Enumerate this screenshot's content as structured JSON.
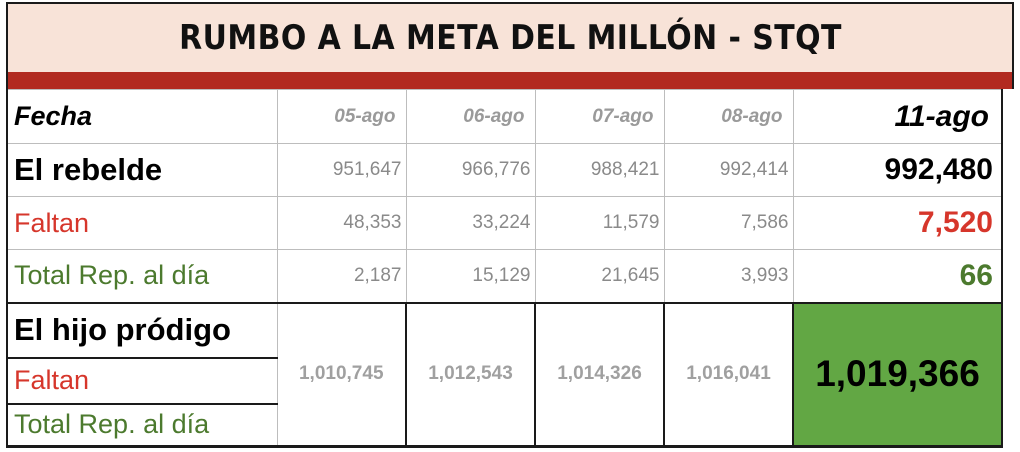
{
  "title": "RUMBO A LA META DEL MILLÓN - STQT",
  "colors": {
    "title_bg": "#f8e3d8",
    "band": "#b22a20",
    "red_text": "#d6362b",
    "green_text": "#4c7a2e",
    "highlight_fill": "#62a744"
  },
  "rows": {
    "fecha": {
      "label": "Fecha",
      "values": [
        "05-ago",
        "06-ago",
        "07-ago",
        "08-ago"
      ],
      "latest": "11-ago"
    },
    "rebelde": {
      "label": "El rebelde",
      "values": [
        "951,647",
        "966,776",
        "988,421",
        "992,414"
      ],
      "latest": "992,480"
    },
    "rebelde_faltan": {
      "label": "Faltan",
      "values": [
        "48,353",
        "33,224",
        "11,579",
        "7,586"
      ],
      "latest": "7,520"
    },
    "rebelde_total": {
      "label": "Total Rep. al día",
      "values": [
        "2,187",
        "15,129",
        "21,645",
        "3,993"
      ],
      "latest": "66"
    },
    "hijo": {
      "label": "El hijo pródigo",
      "faltan_label": "Faltan",
      "total_label": "Total Rep. al día",
      "values": [
        "1,010,745",
        "1,012,543",
        "1,014,326",
        "1,016,041"
      ],
      "latest": "1,019,366"
    }
  }
}
